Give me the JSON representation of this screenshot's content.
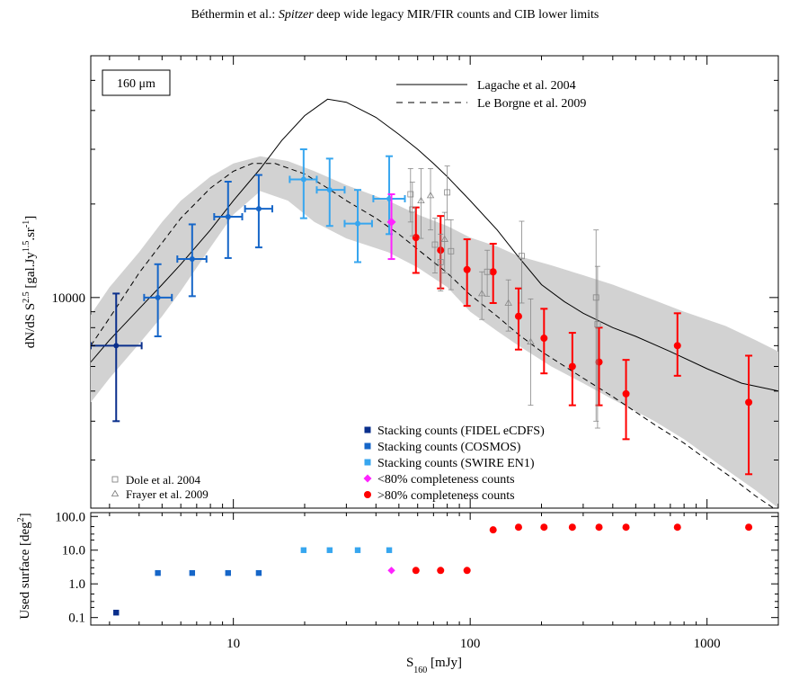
{
  "header": {
    "before": "Béthermin et al.: ",
    "italic": "Spitzer",
    "after": " deep wide legacy MIR/FIR counts and CIB lower limits"
  },
  "chart_data": [
    {
      "type": "scatter",
      "panel": "top",
      "xscale": "log",
      "yscale": "log",
      "xlim": [
        2.5,
        2000
      ],
      "ylim": [
        2100,
        60000
      ],
      "ylabel": "dN/dS S^2.5 [gal.Jy^1.5.sr^-1]",
      "ylabel_parts": {
        "a": "dN/dS S",
        "a_sup": "2.5",
        "b": " [gal.Jy",
        "b_sup": "1.5",
        "c": ".sr",
        "c_sup": "-1",
        "d": "]"
      },
      "y_tick_labels": [
        {
          "value": 10000,
          "label": "10000"
        }
      ],
      "box_label": "160 μm",
      "legend_models": [
        {
          "label": "Lagache et al. 2004",
          "style": "solid"
        },
        {
          "label": "Le Borgne et al. 2009",
          "style": "dashed"
        }
      ],
      "legend_points": [
        {
          "label": "Stacking counts (FIDEL eCDFS)",
          "color": "#0a2f8c",
          "marker": "square"
        },
        {
          "label": "Stacking counts (COSMOS)",
          "color": "#1666c8",
          "marker": "square"
        },
        {
          "label": "Stacking counts (SWIRE EN1)",
          "color": "#37a6ef",
          "marker": "square"
        },
        {
          "label": "<80% completeness counts",
          "color": "#ff22ff",
          "marker": "diamond"
        },
        {
          "label": ">80% completeness counts",
          "color": "#ff0000",
          "marker": "circle"
        }
      ],
      "legend_refs": [
        {
          "label": "Dole et al. 2004",
          "marker": "open-square"
        },
        {
          "label": "Frayer et al. 2009",
          "marker": "open-triangle"
        }
      ],
      "band": {
        "x": [
          2.5,
          3,
          4,
          5,
          6,
          8,
          10,
          13,
          17,
          22,
          30,
          45,
          60,
          80,
          100,
          130,
          160,
          220,
          300,
          400,
          600,
          800,
          1200,
          1600,
          2000
        ],
        "lower": [
          4600,
          5500,
          7100,
          8700,
          10500,
          14500,
          18500,
          22000,
          20500,
          17500,
          15500,
          14000,
          12500,
          10800,
          9000,
          7800,
          7000,
          6000,
          5300,
          4700,
          4000,
          3500,
          2800,
          2400,
          2100
        ],
        "upper": [
          8800,
          10800,
          14000,
          17500,
          20500,
          24500,
          27000,
          28500,
          27500,
          25500,
          23000,
          20500,
          18500,
          17000,
          15600,
          14600,
          13600,
          12700,
          11800,
          11000,
          9800,
          9000,
          8100,
          7300,
          6700
        ]
      },
      "model_lagache": {
        "x": [
          2.5,
          3,
          4,
          5,
          6,
          8,
          10,
          13,
          16,
          20,
          25,
          30,
          40,
          50,
          60,
          70,
          80,
          100,
          130,
          160,
          200,
          250,
          300,
          400,
          500,
          700,
          1000,
          1400,
          2000
        ],
        "y": [
          6200,
          7300,
          9200,
          11000,
          12800,
          16500,
          20500,
          26000,
          32000,
          38500,
          43500,
          42500,
          38000,
          33500,
          30000,
          27000,
          24500,
          20500,
          16500,
          13500,
          11000,
          9700,
          8900,
          8000,
          7500,
          6700,
          5900,
          5300,
          5000
        ]
      },
      "model_leborgne": {
        "x": [
          2.5,
          3,
          4,
          5,
          6,
          8,
          10,
          12,
          15,
          20,
          25,
          30,
          40,
          50,
          60,
          80,
          100,
          130,
          160,
          200,
          300,
          400,
          600,
          800,
          1000,
          1300,
          1600,
          2000
        ],
        "y": [
          7000,
          8600,
          12000,
          15000,
          18000,
          22500,
          25500,
          27000,
          27000,
          25000,
          22500,
          20500,
          18000,
          16000,
          14300,
          12000,
          10200,
          8700,
          7600,
          6700,
          5500,
          4800,
          3900,
          3400,
          3000,
          2600,
          2300,
          2050
        ]
      },
      "series": [
        {
          "name": "Stacking counts (FIDEL eCDFS)",
          "color": "#0a2f8c",
          "points": [
            {
              "x": 3.2,
              "y": 7000,
              "xlo": 2.5,
              "xhi": 4.1,
              "ylo": 4000,
              "yhi": 10300
            }
          ]
        },
        {
          "name": "Stacking counts (COSMOS)",
          "color": "#1666c8",
          "points": [
            {
              "x": 4.8,
              "y": 10000,
              "xlo": 4.2,
              "xhi": 5.5,
              "ylo": 7500,
              "yhi": 12800
            },
            {
              "x": 6.7,
              "y": 13300,
              "xlo": 5.8,
              "xhi": 7.7,
              "ylo": 10100,
              "yhi": 17200
            },
            {
              "x": 9.5,
              "y": 18200,
              "xlo": 8.3,
              "xhi": 10.9,
              "ylo": 13400,
              "yhi": 23600
            },
            {
              "x": 12.8,
              "y": 19300,
              "xlo": 11.2,
              "xhi": 14.6,
              "ylo": 14500,
              "yhi": 24800
            }
          ]
        },
        {
          "name": "Stacking counts (SWIRE EN1)",
          "color": "#37a6ef",
          "points": [
            {
              "x": 19.8,
              "y": 24000,
              "xlo": 17.3,
              "xhi": 22.5,
              "ylo": 18000,
              "yhi": 30000
            },
            {
              "x": 25.5,
              "y": 22200,
              "xlo": 22.5,
              "xhi": 29.5,
              "ylo": 17000,
              "yhi": 28000
            },
            {
              "x": 33.5,
              "y": 17300,
              "xlo": 29.5,
              "xhi": 38.5,
              "ylo": 13000,
              "yhi": 22200
            },
            {
              "x": 45.5,
              "y": 20800,
              "xlo": 39.0,
              "xhi": 53.0,
              "ylo": 16000,
              "yhi": 28500
            }
          ]
        },
        {
          "name": "<80% completeness counts",
          "color": "#ff22ff",
          "points": [
            {
              "x": 46.5,
              "y": 17500,
              "ylo": 13300,
              "yhi": 21500
            }
          ]
        },
        {
          "name": ">80% completeness counts",
          "color": "#ff0000",
          "points": [
            {
              "x": 59,
              "y": 15600,
              "ylo": 12000,
              "yhi": 19500
            },
            {
              "x": 75,
              "y": 14200,
              "ylo": 10700,
              "yhi": 18300
            },
            {
              "x": 97,
              "y": 12300,
              "ylo": 9400,
              "yhi": 15400
            },
            {
              "x": 125,
              "y": 12100,
              "ylo": 9600,
              "yhi": 14900
            },
            {
              "x": 160,
              "y": 8700,
              "ylo": 6800,
              "yhi": 10700
            },
            {
              "x": 205,
              "y": 7400,
              "ylo": 5700,
              "yhi": 9200
            },
            {
              "x": 270,
              "y": 6000,
              "ylo": 4500,
              "yhi": 7700
            },
            {
              "x": 350,
              "y": 6200,
              "ylo": 4500,
              "yhi": 8000
            },
            {
              "x": 455,
              "y": 4900,
              "ylo": 3500,
              "yhi": 6300
            },
            {
              "x": 750,
              "y": 7000,
              "ylo": 5600,
              "yhi": 8900
            },
            {
              "x": 1500,
              "y": 4600,
              "ylo": 2700,
              "yhi": 6500
            }
          ]
        },
        {
          "name": "Dole et al. 2004",
          "color": "#888888",
          "marker": "open-square",
          "points": [
            {
              "x": 56,
              "y": 21500,
              "ylo": 17500,
              "yhi": 26000
            },
            {
              "x": 57,
              "y": 19200,
              "ylo": 15800,
              "yhi": 23500
            },
            {
              "x": 71,
              "y": 14800,
              "ylo": 12000,
              "yhi": 18000
            },
            {
              "x": 75,
              "y": 13000,
              "ylo": 10500,
              "yhi": 16000
            },
            {
              "x": 80,
              "y": 21800,
              "ylo": 17800,
              "yhi": 26500
            },
            {
              "x": 83,
              "y": 14100,
              "ylo": 10600,
              "yhi": 17800
            },
            {
              "x": 118,
              "y": 12100,
              "ylo": 10100,
              "yhi": 14200
            },
            {
              "x": 165,
              "y": 13600,
              "ylo": 9600,
              "yhi": 17600
            },
            {
              "x": 340,
              "y": 10000,
              "ylo": 4000,
              "yhi": 16500
            },
            {
              "x": 345,
              "y": 8200,
              "ylo": 3800,
              "yhi": 12600
            }
          ]
        },
        {
          "name": "Frayer et al. 2009",
          "color": "#888888",
          "marker": "open-triangle",
          "points": [
            {
              "x": 62,
              "y": 20500,
              "ylo": 15500,
              "yhi": 26000
            },
            {
              "x": 68,
              "y": 21300,
              "ylo": 16500,
              "yhi": 26000
            },
            {
              "x": 78,
              "y": 15400,
              "ylo": 12000,
              "yhi": 18800
            },
            {
              "x": 112,
              "y": 10300,
              "ylo": 8500,
              "yhi": 12100
            },
            {
              "x": 145,
              "y": 9600,
              "ylo": 7800,
              "yhi": 11400
            },
            {
              "x": 180,
              "y": 7200,
              "ylo": 4500,
              "yhi": 9900
            }
          ]
        }
      ]
    },
    {
      "type": "scatter",
      "panel": "bottom",
      "xscale": "log",
      "yscale": "log",
      "xlim": [
        2.5,
        2000
      ],
      "ylim": [
        0.06,
        130
      ],
      "xlabel": "S160 [mJy]",
      "xlabel_parts": {
        "main": "S",
        "sub": "160",
        "rest": " [mJy]"
      },
      "ylabel": "Used surface [deg2]",
      "ylabel_parts": {
        "main": "Used surface [deg",
        "sup": "2",
        "rest": "]"
      },
      "x_tick_labels": [
        {
          "value": 10,
          "label": "10"
        },
        {
          "value": 100,
          "label": "100"
        },
        {
          "value": 1000,
          "label": "1000"
        }
      ],
      "y_tick_labels": [
        {
          "value": 0.1,
          "label": "0.1"
        },
        {
          "value": 1.0,
          "label": "1.0"
        },
        {
          "value": 10.0,
          "label": "10.0"
        },
        {
          "value": 100.0,
          "label": "100.0"
        }
      ],
      "series": [
        {
          "name": "Stacking counts (FIDEL eCDFS)",
          "color": "#0a2f8c",
          "marker": "square",
          "points": [
            {
              "x": 3.2,
              "y": 0.14
            }
          ]
        },
        {
          "name": "Stacking counts (COSMOS)",
          "color": "#1666c8",
          "marker": "square",
          "points": [
            {
              "x": 4.8,
              "y": 2.1
            },
            {
              "x": 6.7,
              "y": 2.1
            },
            {
              "x": 9.5,
              "y": 2.1
            },
            {
              "x": 12.8,
              "y": 2.1
            }
          ]
        },
        {
          "name": "Stacking counts (SWIRE EN1)",
          "color": "#37a6ef",
          "marker": "square",
          "points": [
            {
              "x": 19.8,
              "y": 10
            },
            {
              "x": 25.5,
              "y": 10
            },
            {
              "x": 33.5,
              "y": 10
            },
            {
              "x": 45.5,
              "y": 10
            }
          ]
        },
        {
          "name": "<80% completeness counts",
          "color": "#ff22ff",
          "marker": "diamond",
          "points": [
            {
              "x": 46.5,
              "y": 2.5
            }
          ]
        },
        {
          "name": ">80% completeness counts",
          "color": "#ff0000",
          "marker": "circle",
          "points": [
            {
              "x": 59,
              "y": 2.5
            },
            {
              "x": 75,
              "y": 2.5
            },
            {
              "x": 97,
              "y": 2.5
            },
            {
              "x": 125,
              "y": 40
            },
            {
              "x": 160,
              "y": 48
            },
            {
              "x": 205,
              "y": 48
            },
            {
              "x": 270,
              "y": 48
            },
            {
              "x": 350,
              "y": 48
            },
            {
              "x": 455,
              "y": 48
            },
            {
              "x": 750,
              "y": 48
            },
            {
              "x": 1500,
              "y": 48
            }
          ]
        }
      ]
    }
  ]
}
